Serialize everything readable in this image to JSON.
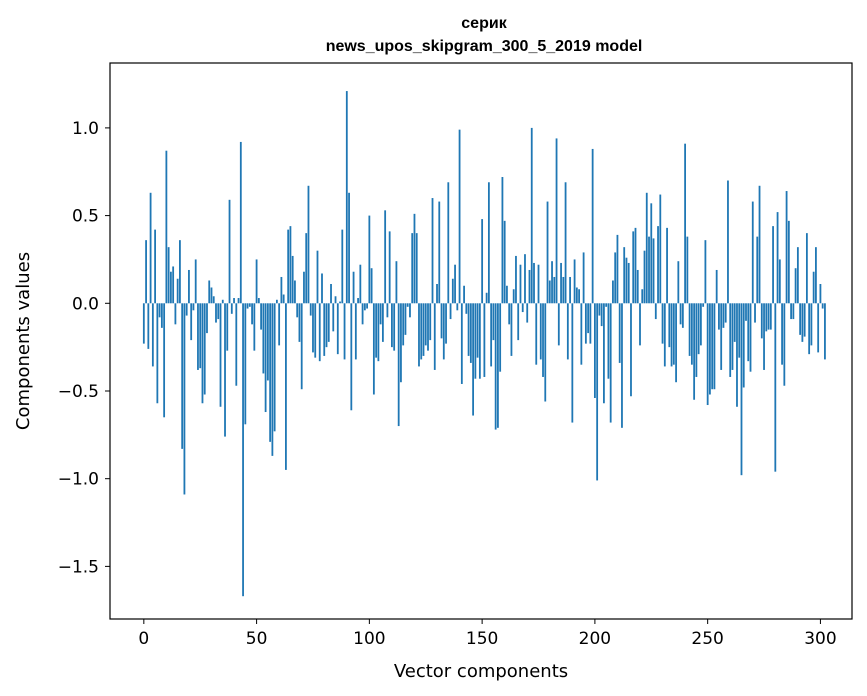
{
  "chart_data": {
    "type": "bar",
    "title_line1": "серик",
    "title_line2": "news_upos_skipgram_300_5_2019 model",
    "xlabel": "Vector components",
    "ylabel": "Components values",
    "xlim": [
      -15,
      314
    ],
    "ylim": [
      -1.8,
      1.37
    ],
    "xticks": [
      0,
      50,
      100,
      150,
      200,
      250,
      300
    ],
    "xtick_labels": [
      "0",
      "50",
      "100",
      "150",
      "200",
      "250",
      "300"
    ],
    "yticks": [
      1.0,
      0.5,
      0.0,
      -0.5,
      -1.0,
      -1.5
    ],
    "ytick_labels": [
      "1.0",
      "0.5",
      "0.0",
      "−0.5",
      "−1.0",
      "−1.5"
    ],
    "bar_color": "#1f77b4",
    "values": [
      -0.23,
      0.36,
      -0.26,
      0.63,
      -0.36,
      0.42,
      -0.57,
      -0.08,
      -0.14,
      -0.65,
      0.87,
      0.32,
      0.18,
      0.21,
      -0.12,
      0.14,
      0.36,
      -0.83,
      -1.09,
      -0.07,
      0.19,
      -0.21,
      -0.04,
      0.25,
      -0.38,
      -0.37,
      -0.57,
      -0.52,
      -0.17,
      0.13,
      0.09,
      0.04,
      -0.11,
      -0.09,
      -0.59,
      0.02,
      -0.76,
      -0.27,
      0.59,
      -0.06,
      0.03,
      -0.47,
      0.03,
      0.92,
      -1.67,
      -0.69,
      -0.03,
      -0.02,
      -0.12,
      -0.27,
      0.25,
      0.03,
      -0.15,
      -0.4,
      -0.62,
      -0.44,
      -0.79,
      -0.87,
      -0.73,
      0.02,
      -0.24,
      0.15,
      0.05,
      -0.95,
      0.42,
      0.44,
      0.27,
      0.13,
      -0.08,
      -0.22,
      -0.49,
      0.18,
      0.4,
      0.67,
      -0.07,
      -0.28,
      -0.31,
      0.3,
      -0.33,
      0.17,
      -0.3,
      -0.25,
      -0.22,
      0.11,
      -0.16,
      0.04,
      -0.29,
      0.01,
      0.42,
      -0.32,
      1.21,
      0.63,
      -0.61,
      0.18,
      -0.32,
      0.03,
      0.22,
      -0.12,
      -0.04,
      -0.03,
      0.5,
      0.2,
      -0.52,
      -0.31,
      -0.33,
      -0.12,
      -0.22,
      0.53,
      -0.08,
      0.41,
      -0.25,
      -0.27,
      0.24,
      -0.7,
      -0.45,
      -0.24,
      -0.18,
      -0.02,
      -0.08,
      0.4,
      0.51,
      0.4,
      -0.36,
      -0.32,
      -0.3,
      -0.24,
      -0.27,
      -0.21,
      0.6,
      -0.38,
      0.11,
      0.58,
      -0.2,
      -0.32,
      -0.23,
      0.69,
      -0.09,
      0.14,
      0.22,
      -0.04,
      0.99,
      -0.46,
      0.1,
      -0.06,
      -0.3,
      -0.34,
      -0.64,
      -0.43,
      -0.31,
      -0.43,
      0.48,
      -0.42,
      0.06,
      0.69,
      -0.36,
      -0.21,
      -0.72,
      -0.71,
      -0.39,
      0.72,
      0.47,
      0.1,
      -0.12,
      -0.3,
      0.08,
      0.27,
      -0.21,
      0.22,
      -0.05,
      0.28,
      -0.11,
      0.19,
      1.0,
      0.23,
      -0.35,
      0.22,
      -0.32,
      -0.42,
      -0.56,
      0.58,
      0.13,
      0.24,
      0.15,
      0.94,
      -0.24,
      0.23,
      0.15,
      0.69,
      -0.32,
      0.15,
      -0.68,
      0.25,
      0.09,
      0.08,
      -0.35,
      0.29,
      -0.23,
      -0.17,
      -0.23,
      0.88,
      -0.54,
      -1.01,
      -0.07,
      -0.13,
      -0.57,
      -0.02,
      -0.43,
      -0.68,
      0.13,
      0.29,
      0.39,
      -0.34,
      -0.71,
      0.32,
      0.26,
      0.23,
      -0.53,
      0.41,
      0.43,
      0.19,
      -0.24,
      0.08,
      0.3,
      0.63,
      0.38,
      0.57,
      0.37,
      -0.09,
      0.44,
      0.62,
      -0.23,
      -0.36,
      0.43,
      -0.25,
      -0.36,
      -0.35,
      -0.45,
      0.24,
      -0.12,
      -0.14,
      0.91,
      0.38,
      -0.3,
      -0.35,
      -0.55,
      -0.42,
      -0.29,
      -0.24,
      -0.02,
      0.36,
      -0.58,
      -0.52,
      -0.49,
      -0.49,
      0.19,
      -0.15,
      -0.38,
      -0.14,
      -0.11,
      0.7,
      -0.42,
      -0.38,
      -0.22,
      -0.59,
      -0.31,
      -0.98,
      -0.48,
      -0.1,
      -0.33,
      -0.39,
      0.58,
      -0.11,
      0.38,
      0.67,
      -0.2,
      -0.38,
      -0.16,
      -0.15,
      -0.15,
      0.44,
      -0.96,
      0.52,
      0.25,
      -0.35,
      -0.47,
      0.64,
      0.47,
      -0.09,
      -0.09,
      0.2,
      0.32,
      -0.18,
      -0.22,
      -0.19,
      0.4,
      -0.29,
      -0.24,
      0.18,
      0.32,
      -0.28,
      0.11,
      -0.03,
      -0.32
    ]
  }
}
